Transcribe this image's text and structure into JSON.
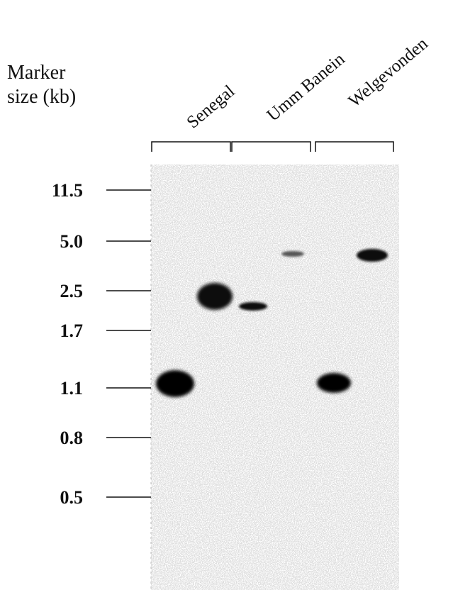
{
  "marker_label": [
    "Marker",
    "size (kb)"
  ],
  "markers": [
    "11.5",
    "5.0",
    "2.5",
    "1.7",
    "1.1",
    "0.8",
    "0.5"
  ],
  "lanes": [
    "Senegal",
    "Umm Banein",
    "Welgevonden"
  ]
}
